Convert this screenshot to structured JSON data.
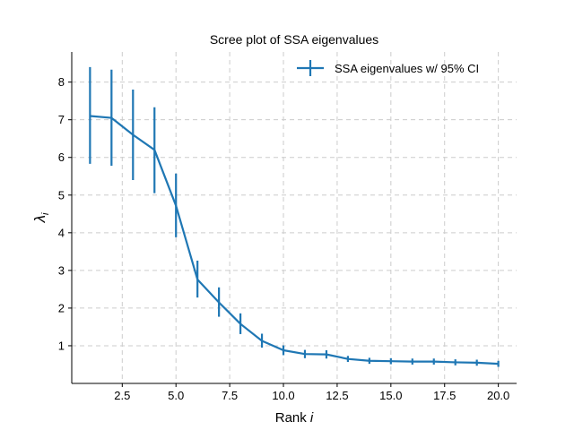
{
  "chart_data": {
    "type": "line",
    "title": "Scree plot of SSA eigenvalues",
    "xlabel_text": "Rank ",
    "xlabel_var": "i",
    "ylabel_symbol": "λ",
    "ylabel_subscript": "i",
    "xlim": [
      0.15,
      20.85
    ],
    "ylim": [
      0.0,
      8.8
    ],
    "xticks": [
      2.5,
      5.0,
      7.5,
      10.0,
      12.5,
      15.0,
      17.5,
      20.0
    ],
    "xtick_labels": [
      "2.5",
      "5.0",
      "7.5",
      "10.0",
      "12.5",
      "15.0",
      "17.5",
      "20.0"
    ],
    "yticks": [
      1,
      2,
      3,
      4,
      5,
      6,
      7,
      8
    ],
    "ytick_labels": [
      "1",
      "2",
      "3",
      "4",
      "5",
      "6",
      "7",
      "8"
    ],
    "grid": true,
    "legend_position": "top-right",
    "series": [
      {
        "name": "SSA eigenvalues w/ 95% CI",
        "color": "#1f77b4",
        "x": [
          1,
          2,
          3,
          4,
          5,
          6,
          7,
          8,
          9,
          10,
          11,
          12,
          13,
          14,
          15,
          16,
          17,
          18,
          19,
          20
        ],
        "y": [
          7.1,
          7.05,
          6.6,
          6.2,
          4.72,
          2.76,
          2.15,
          1.58,
          1.13,
          0.88,
          0.78,
          0.77,
          0.65,
          0.6,
          0.59,
          0.58,
          0.58,
          0.56,
          0.55,
          0.52
        ],
        "ci_low": [
          5.83,
          5.78,
          5.4,
          5.05,
          3.88,
          2.28,
          1.77,
          1.31,
          0.95,
          0.75,
          0.67,
          0.66,
          0.57,
          0.52,
          0.51,
          0.5,
          0.5,
          0.48,
          0.47,
          0.44
        ],
        "ci_high": [
          8.4,
          8.33,
          7.8,
          7.33,
          5.57,
          3.26,
          2.55,
          1.86,
          1.32,
          1.01,
          0.89,
          0.88,
          0.73,
          0.68,
          0.67,
          0.66,
          0.66,
          0.64,
          0.63,
          0.6
        ]
      }
    ]
  }
}
